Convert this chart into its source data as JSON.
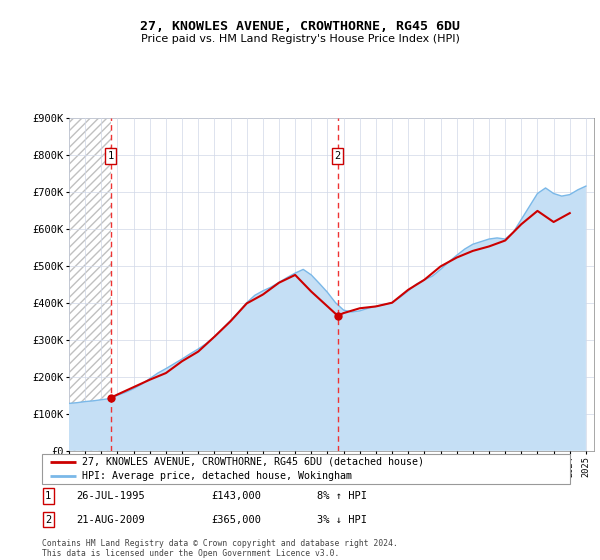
{
  "title": "27, KNOWLES AVENUE, CROWTHORNE, RG45 6DU",
  "subtitle": "Price paid vs. HM Land Registry's House Price Index (HPI)",
  "footer": "Contains HM Land Registry data © Crown copyright and database right 2024.\nThis data is licensed under the Open Government Licence v3.0.",
  "legend_line1": "27, KNOWLES AVENUE, CROWTHORNE, RG45 6DU (detached house)",
  "legend_line2": "HPI: Average price, detached house, Wokingham",
  "sale1_label": "1",
  "sale1_date": "26-JUL-1995",
  "sale1_price": "£143,000",
  "sale1_hpi": "8% ↑ HPI",
  "sale1_year": 1995.57,
  "sale1_value": 143000,
  "sale2_label": "2",
  "sale2_date": "21-AUG-2009",
  "sale2_price": "£365,000",
  "sale2_hpi": "3% ↓ HPI",
  "sale2_year": 2009.63,
  "sale2_value": 365000,
  "ylim": [
    0,
    900000
  ],
  "yticks": [
    0,
    100000,
    200000,
    300000,
    400000,
    500000,
    600000,
    700000,
    800000,
    900000
  ],
  "ytick_labels": [
    "£0",
    "£100K",
    "£200K",
    "£300K",
    "£400K",
    "£500K",
    "£600K",
    "£700K",
    "£800K",
    "£900K"
  ],
  "xlim_start": 1993.0,
  "xlim_end": 2025.5,
  "hatch_end_year": 1995.57,
  "hpi_fill_color": "#c5dff5",
  "hpi_line_color": "#7ab8e8",
  "price_color": "#cc0000",
  "dashed_line_color": "#ee3333",
  "marker_color": "#cc0000",
  "plot_bg_color": "#ffffff",
  "hpi_years": [
    1993.0,
    1993.5,
    1994.0,
    1994.5,
    1995.0,
    1995.5,
    1996.0,
    1996.5,
    1997.0,
    1997.5,
    1998.0,
    1998.5,
    1999.0,
    1999.5,
    2000.0,
    2000.5,
    2001.0,
    2001.5,
    2002.0,
    2002.5,
    2003.0,
    2003.5,
    2004.0,
    2004.5,
    2005.0,
    2005.5,
    2006.0,
    2006.5,
    2007.0,
    2007.5,
    2008.0,
    2008.5,
    2009.0,
    2009.5,
    2010.0,
    2010.5,
    2011.0,
    2011.5,
    2012.0,
    2012.5,
    2013.0,
    2013.5,
    2014.0,
    2014.5,
    2015.0,
    2015.5,
    2016.0,
    2016.5,
    2017.0,
    2017.5,
    2018.0,
    2018.5,
    2019.0,
    2019.5,
    2020.0,
    2020.5,
    2021.0,
    2021.5,
    2022.0,
    2022.5,
    2023.0,
    2023.5,
    2024.0,
    2024.5,
    2025.0
  ],
  "hpi_values": [
    128000,
    130000,
    133000,
    135000,
    138000,
    141000,
    150000,
    158000,
    168000,
    180000,
    195000,
    210000,
    222000,
    235000,
    248000,
    262000,
    275000,
    290000,
    308000,
    330000,
    352000,
    375000,
    400000,
    420000,
    432000,
    442000,
    455000,
    468000,
    480000,
    490000,
    475000,
    452000,
    428000,
    400000,
    380000,
    375000,
    378000,
    385000,
    390000,
    395000,
    400000,
    415000,
    432000,
    450000,
    462000,
    472000,
    490000,
    510000,
    528000,
    545000,
    558000,
    565000,
    572000,
    575000,
    572000,
    590000,
    625000,
    660000,
    695000,
    710000,
    695000,
    688000,
    692000,
    705000,
    715000
  ],
  "price_years": [
    1995.57,
    1996.0,
    1997.0,
    1998.0,
    1999.0,
    2000.0,
    2001.0,
    2002.0,
    2003.0,
    2004.0,
    2005.0,
    2006.0,
    2007.0,
    2008.0,
    2009.63,
    2010.0,
    2011.0,
    2012.0,
    2013.0,
    2014.0,
    2015.0,
    2016.0,
    2017.0,
    2018.0,
    2019.0,
    2020.0,
    2021.0,
    2022.0,
    2023.0,
    2024.0
  ],
  "price_values": [
    143000,
    152000,
    172000,
    192000,
    210000,
    242000,
    268000,
    308000,
    350000,
    398000,
    422000,
    454000,
    475000,
    430000,
    365000,
    372000,
    385000,
    390000,
    400000,
    435000,
    462000,
    498000,
    522000,
    540000,
    552000,
    568000,
    612000,
    648000,
    618000,
    642000
  ]
}
